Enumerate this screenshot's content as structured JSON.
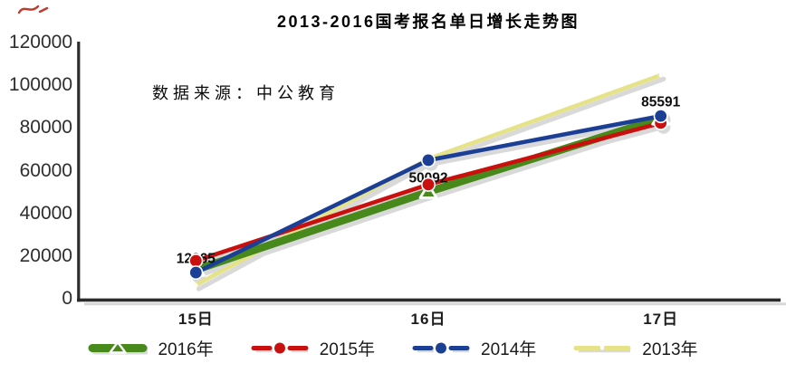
{
  "chart_data": {
    "type": "line",
    "title": "2013-2016国考报名单日增长走势图",
    "source_note": "数据来源：中公教育",
    "categories": [
      "15日",
      "16日",
      "17日"
    ],
    "xlabel": "",
    "ylabel": "",
    "ylim": [
      0,
      120000
    ],
    "y_ticks": [
      0,
      20000,
      40000,
      60000,
      80000,
      100000,
      120000
    ],
    "grid": false,
    "legend_position": "bottom",
    "series": [
      {
        "name": "2016年",
        "color": "#47891B",
        "width": 8.5,
        "marker": "triangle",
        "values": [
          13600,
          50092,
          84500
        ]
      },
      {
        "name": "2015年",
        "color": "#C9100F",
        "width": 4.6,
        "marker": "circle",
        "values": [
          17800,
          53500,
          82300
        ]
      },
      {
        "name": "2014年",
        "color": "#1C3F96",
        "width": 4.6,
        "marker": "circle",
        "values": [
          12265,
          64900,
          85591
        ]
      },
      {
        "name": "2013年",
        "color": "#E5E288",
        "width": 4.6,
        "marker": "dash",
        "values": [
          6400,
          65500,
          104700
        ]
      }
    ],
    "point_labels": [
      {
        "text": "12265",
        "series": "2014年",
        "category_index": 0
      },
      {
        "text": "50092",
        "series": "2016年",
        "category_index": 1
      },
      {
        "text": "85591",
        "series": "2014年",
        "category_index": 2
      }
    ],
    "colors": {
      "axis": "#2B2B2B",
      "shadow": "#D9D9D9",
      "point_label": "#0F0F0F",
      "tick_label": "#2E2E2E",
      "corner_mark": "#C0392B"
    }
  }
}
